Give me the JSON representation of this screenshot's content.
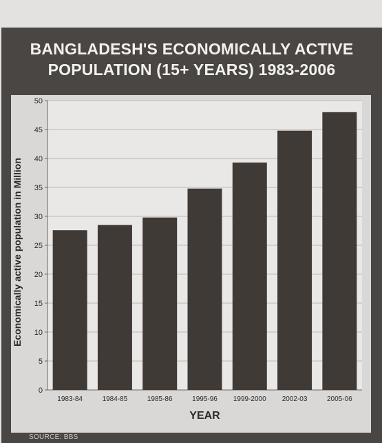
{
  "chart_data": {
    "type": "bar",
    "title_line1": "BANGLADESH'S ECONOMICALLY ACTIVE",
    "title_line2": "POPULATION (15+ YEARS) 1983-2006",
    "xlabel": "YEAR",
    "ylabel": "Economically active population in Million",
    "categories": [
      "1983-84",
      "1984-85",
      "1985-86",
      "1995-96",
      "1999-2000",
      "2002-03",
      "2005-06"
    ],
    "values": [
      27.6,
      28.5,
      29.8,
      34.8,
      39.3,
      44.8,
      48.0
    ],
    "ylim": [
      0,
      50
    ],
    "yticks": [
      0,
      5,
      10,
      15,
      20,
      25,
      30,
      35,
      40,
      45,
      50
    ],
    "grid": true,
    "colors": {
      "bar": "#403a37",
      "frame": "#4a4643",
      "panel": "#d9d8d6",
      "plot": "#e9e8e6",
      "grid": "#b9b7b4"
    },
    "source": "SOURCE: BBS"
  }
}
